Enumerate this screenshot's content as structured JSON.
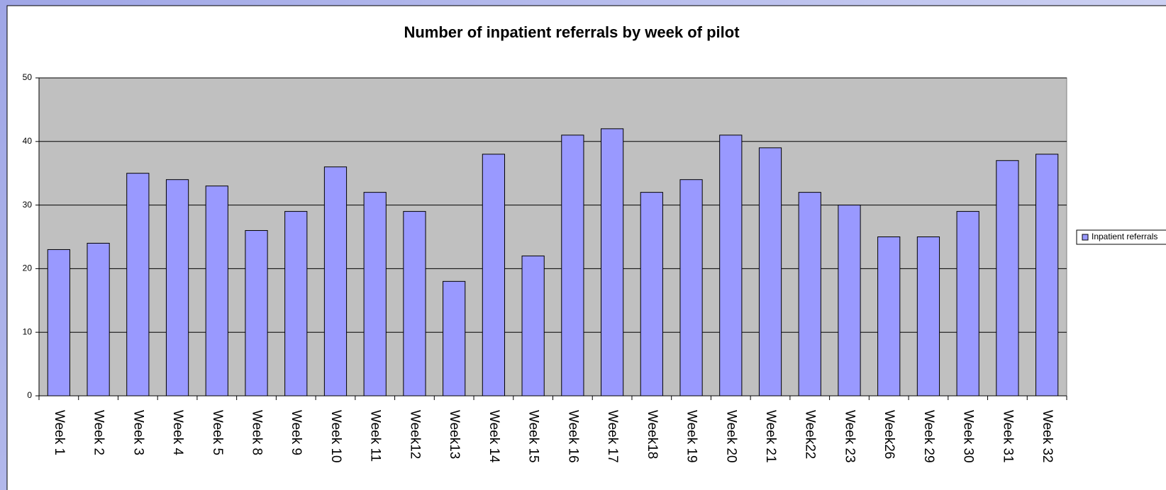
{
  "chart_data": {
    "type": "bar",
    "title": "Number of inpatient referrals by week of pilot",
    "categories": [
      "Week 1",
      "Week 2",
      "Week 3",
      "Week 4",
      "Week 5",
      "Week 8",
      "Week 9",
      "Week 10",
      "Week 11",
      "Week12",
      "Week13",
      "Week 14",
      "Week 15",
      "Week 16",
      "Week 17",
      "Week18",
      "Week 19",
      "Week 20",
      "Week 21",
      "Week22",
      "Week 23",
      "Week26",
      "Week 29",
      "Week 30",
      "Week 31",
      "Week 32"
    ],
    "series": [
      {
        "name": "Inpatient referrals",
        "color": "#9999ff",
        "values": [
          23,
          24,
          35,
          34,
          33,
          26,
          29,
          36,
          32,
          29,
          18,
          38,
          22,
          41,
          42,
          32,
          34,
          41,
          39,
          32,
          30,
          25,
          25,
          29,
          37,
          38
        ]
      }
    ],
    "ylim": [
      0,
      50
    ],
    "yticks": [
      0,
      10,
      20,
      30,
      40,
      50
    ],
    "grid": true,
    "legend": "right"
  }
}
